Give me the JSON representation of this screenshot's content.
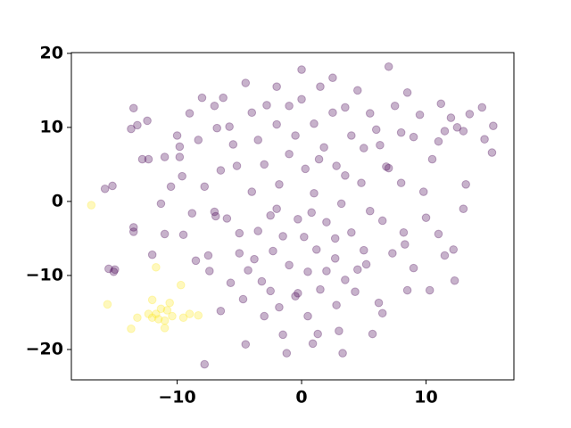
{
  "chart_data": {
    "type": "scatter",
    "xlim": [
      -18.5,
      17.06
    ],
    "ylim": [
      -24.1,
      20.1
    ],
    "xticks": [
      {
        "value": -10,
        "label": "−10"
      },
      0,
      10
    ],
    "yticks": [
      {
        "value": -20,
        "label": "−20"
      },
      {
        "value": -10,
        "label": "−10"
      },
      0,
      10,
      20
    ],
    "series": [
      {
        "color": "#440154",
        "x": [
          -15.8,
          -15.2,
          -13.7,
          -13.5,
          -13.2,
          -12.8,
          -12.3,
          -12.4,
          -13.5,
          -13.5,
          -15.5,
          -15.1,
          -15,
          -12,
          -11,
          -11,
          -10.5,
          -11.3,
          -10,
          -9.8,
          -9.6,
          -9.8,
          -9,
          -9.5,
          -8.8,
          -8.5,
          -8,
          -7.8,
          -7.5,
          -7.8,
          -7,
          -7,
          -6.8,
          -6.5,
          -6.3,
          -6,
          -6.5,
          -5.8,
          -5.5,
          -5.2,
          -5,
          -5,
          -4.7,
          -4.5,
          -4.5,
          -4,
          -4,
          -3.5,
          -3.5,
          -3,
          -3.2,
          -3,
          -2.8,
          -2.5,
          -2.3,
          -2.5,
          -2,
          -2,
          -1.8,
          -1.5,
          -1.5,
          -1,
          -1,
          -1,
          -1.2,
          -0.5,
          -0.5,
          -0.3,
          0,
          0,
          0.3,
          0.2,
          0.5,
          0.5,
          1,
          1,
          1.2,
          1.5,
          1.3,
          1.5,
          1.8,
          2,
          2,
          2.5,
          2.5,
          2.8,
          2.7,
          2.8,
          3,
          3.3,
          3.5,
          3.2,
          3.5,
          4,
          4,
          4.3,
          4.5,
          4.8,
          5,
          5.2,
          5.5,
          5.5,
          5.7,
          6,
          6.2,
          6.3,
          6.5,
          6.5,
          7,
          7,
          7.3,
          7.5,
          8,
          8,
          8.2,
          8.5,
          8.5,
          9,
          9,
          9.5,
          9.8,
          10,
          10.3,
          10.5,
          11,
          11,
          11.2,
          11.5,
          11.5,
          12,
          12.2,
          12.3,
          12.5,
          13,
          13.2,
          13.5,
          14.5,
          14.7,
          15.3,
          15.4,
          13,
          -6.9,
          -4.3,
          -0.3,
          2.7,
          4.5,
          0.8,
          -2,
          3.5,
          6.8,
          5,
          -8.3,
          -1.8,
          -5.7,
          0.9,
          -3.8,
          1.4,
          8.3,
          -7.4
        ],
        "y": [
          1.7,
          2.1,
          9.8,
          12.6,
          10.3,
          5.7,
          5.7,
          10.9,
          -3.5,
          -4.1,
          -9.1,
          -9.5,
          -9.2,
          -7.2,
          -4.4,
          6,
          2,
          -0.3,
          8.9,
          7.4,
          3.4,
          6,
          11.9,
          -4.5,
          -1.6,
          -8,
          14,
          2,
          -7.3,
          -22,
          12.9,
          -1.4,
          9.9,
          4.2,
          14,
          -2.3,
          -14.8,
          10.1,
          7.7,
          4.8,
          -7,
          -4.3,
          -13.2,
          16,
          -19.3,
          12,
          1.3,
          8.3,
          -4,
          -15.5,
          -10.8,
          5,
          13,
          -1.9,
          -6.7,
          -12.1,
          15.5,
          10.4,
          2.3,
          -4.7,
          -18,
          12.9,
          6.4,
          -8.6,
          -20.5,
          8.9,
          -12.8,
          -2.4,
          17.8,
          13.8,
          4.4,
          -4.8,
          -9.5,
          -15.5,
          10.5,
          1.1,
          -6.5,
          -11.9,
          -17.9,
          15.5,
          7.3,
          -2.8,
          -9.4,
          16.7,
          12,
          4.8,
          -7.7,
          -14,
          -17.5,
          -20.5,
          12.7,
          -0.3,
          -10.6,
          8.9,
          -4.2,
          -12.2,
          15,
          2.5,
          -6.6,
          -8.5,
          11.9,
          -1.3,
          -17.9,
          9.7,
          -13.7,
          7.6,
          -2.6,
          -15.1,
          18.2,
          4.5,
          -7,
          12.9,
          9.3,
          2.5,
          -4.2,
          -12,
          14.7,
          8.7,
          -9,
          11.7,
          1.3,
          -2.2,
          -12,
          5.7,
          8.1,
          -4.4,
          13.2,
          9.5,
          -7.3,
          11.3,
          -6.5,
          -10.7,
          10,
          -1,
          2.3,
          11.8,
          12.7,
          8.4,
          6.6,
          10.2,
          9.5,
          -2,
          -9.3,
          -12.4,
          -5,
          -9.2,
          -1.5,
          -1,
          3.5,
          4.7,
          7.2,
          8.3,
          -14.3,
          -11,
          -19.2,
          -7.8,
          5.7,
          -5.8,
          -9.4
        ]
      },
      {
        "color": "#fde725",
        "x": [
          -16.9,
          -15.6,
          -13.7,
          -13.2,
          -12,
          -11.7,
          -11.7,
          -12,
          -11.3,
          -11,
          -11,
          -10.8,
          -10.6,
          -9.7,
          -9.5,
          -9,
          -8.3,
          -12.3,
          -11.5,
          -10.4
        ],
        "y": [
          -0.5,
          -13.9,
          -17.2,
          -15.7,
          -13.3,
          -8.9,
          -15.2,
          -15.7,
          -14.5,
          -16.1,
          -17.1,
          -14.7,
          -13.7,
          -11.3,
          -15.7,
          -15.2,
          -15.4,
          -15.2,
          -15.9,
          -15.5
        ]
      }
    ]
  }
}
